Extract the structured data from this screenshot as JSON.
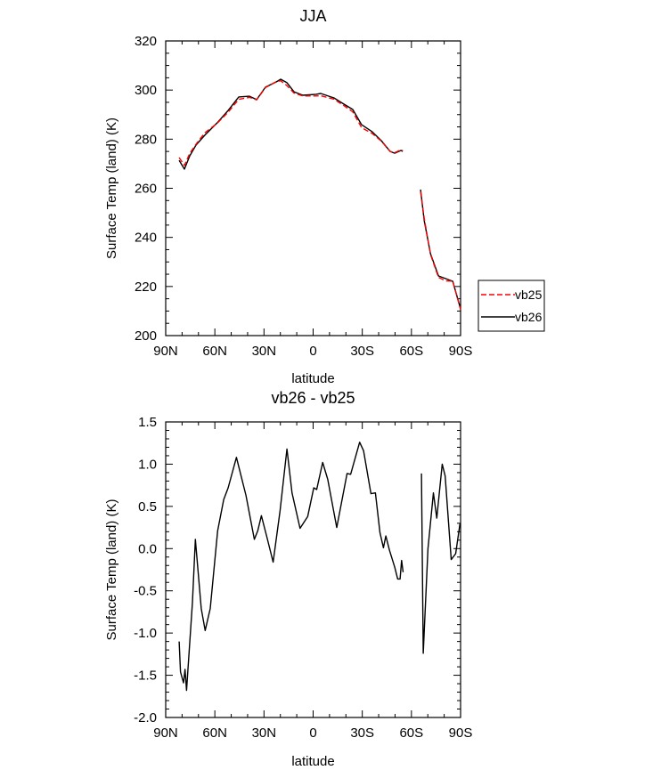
{
  "chart_data": [
    {
      "type": "line",
      "title": "JJA",
      "xlabel": "latitude",
      "ylabel": "Surface Temp (land) (K)",
      "xlim": [
        90,
        -90
      ],
      "ylim": [
        200,
        320
      ],
      "xticks": [
        90,
        60,
        30,
        0,
        -30,
        -60,
        -90
      ],
      "xtick_labels": [
        "90N",
        "60N",
        "30N",
        "0",
        "30S",
        "60S",
        "90S"
      ],
      "yticks": [
        200,
        220,
        240,
        260,
        280,
        300,
        320
      ],
      "ytick_labels": [
        "200",
        "220",
        "240",
        "260",
        "280",
        "300",
        "320"
      ],
      "legend": {
        "placement": "right",
        "entries": [
          "vb25",
          "vb26"
        ]
      },
      "x": [
        81.8,
        78.6,
        75.3,
        71.5,
        66.1,
        58.5,
        51.9,
        45.4,
        38.9,
        34.5,
        29.1,
        22.6,
        19.8,
        16.0,
        11.7,
        6.3,
        -1.9,
        -4.6,
        -12.7,
        -18.7,
        -24.2,
        -29.6,
        -36.1,
        -41.6,
        -47.0,
        -49.8,
        -53.6,
        -54.7,
        null,
        -65.6,
        -67.8,
        -71.6,
        -76.5,
        -80.9,
        -85.2,
        -90.0
      ],
      "series": [
        {
          "name": "vb25",
          "color": "#ff0000",
          "dash": "dashed",
          "values": [
            272.5,
            269.3,
            274.2,
            277.9,
            282.6,
            286.5,
            291.0,
            296.2,
            297.0,
            296.0,
            301.0,
            303.4,
            303.8,
            301.8,
            298.8,
            297.6,
            297.6,
            297.7,
            296.3,
            293.7,
            291.1,
            284.7,
            282.3,
            279.2,
            275.0,
            274.5,
            275.7,
            275.3,
            null,
            258.6,
            247.8,
            233.1,
            223.7,
            222.3,
            222.2,
            210.6
          ]
        },
        {
          "name": "vb26",
          "color": "#000000",
          "dash": "solid",
          "values": [
            271.4,
            267.8,
            273.2,
            277.6,
            281.6,
            286.7,
            291.7,
            297.2,
            297.5,
            296.1,
            301.2,
            303.3,
            304.4,
            303.0,
            299.3,
            297.9,
            298.3,
            298.6,
            296.8,
            294.3,
            292.1,
            285.9,
            283.0,
            279.4,
            275.0,
            274.3,
            275.4,
            275.0,
            null,
            259.5,
            246.8,
            233.4,
            224.3,
            223.2,
            222.1,
            210.9
          ]
        }
      ]
    },
    {
      "type": "line",
      "title": "vb26 - vb25",
      "xlabel": "latitude",
      "ylabel": "Surface Temp (land) (K)",
      "xlim": [
        90,
        -90
      ],
      "ylim": [
        -2.0,
        1.5
      ],
      "xticks": [
        90,
        60,
        30,
        0,
        -30,
        -60,
        -90
      ],
      "xtick_labels": [
        "90N",
        "60N",
        "30N",
        "0",
        "30S",
        "60S",
        "90S"
      ],
      "yticks": [
        -2.0,
        -1.5,
        -1.0,
        -0.5,
        0.0,
        0.5,
        1.0,
        1.5
      ],
      "ytick_labels": [
        "-2.0",
        "-1.5",
        "-1.0",
        "-0.5",
        "0.0",
        "0.5",
        "1.0",
        "1.5"
      ],
      "x": [
        81.8,
        81.0,
        79.1,
        78.2,
        77.3,
        73.7,
        71.9,
        68.3,
        65.9,
        62.8,
        58.3,
        54.6,
        51.9,
        46.8,
        41.0,
        35.9,
        33.8,
        31.6,
        28.3,
        24.4,
        20.2,
        16.0,
        12.9,
        8.0,
        3.3,
        -0.4,
        -2.2,
        -5.8,
        -8.9,
        -14.4,
        -20.7,
        -22.9,
        -28.4,
        -30.8,
        -35.3,
        -38.0,
        -40.8,
        -42.9,
        -44.4,
        -46.6,
        -49.8,
        -51.6,
        -53.1,
        -54.0,
        -54.9,
        null,
        -66.1,
        -67.2,
        -70.1,
        -73.4,
        -75.5,
        -78.8,
        -80.6,
        -84.3,
        -87.0,
        -89.7
      ],
      "series": [
        {
          "name": "vb26 - vb25",
          "color": "#000000",
          "dash": "solid",
          "values": [
            -1.1,
            -1.46,
            -1.59,
            -1.43,
            -1.68,
            -0.64,
            0.11,
            -0.71,
            -0.97,
            -0.71,
            0.21,
            0.58,
            0.72,
            1.08,
            0.63,
            0.11,
            0.21,
            0.39,
            0.14,
            -0.16,
            0.45,
            1.18,
            0.66,
            0.24,
            0.38,
            0.72,
            0.7,
            1.02,
            0.82,
            0.25,
            0.89,
            0.88,
            1.26,
            1.16,
            0.65,
            0.66,
            0.19,
            0.01,
            0.15,
            -0.02,
            -0.22,
            -0.36,
            -0.36,
            -0.14,
            -0.28,
            null,
            0.89,
            -1.24,
            0.0,
            0.66,
            0.36,
            1.0,
            0.86,
            -0.13,
            -0.06,
            0.3
          ]
        }
      ]
    }
  ]
}
